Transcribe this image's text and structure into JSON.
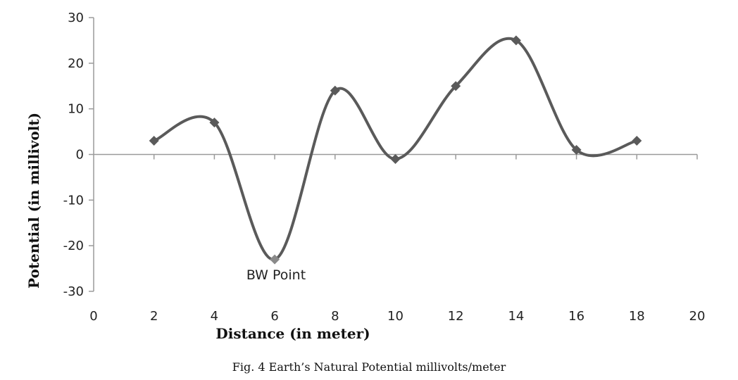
{
  "caption": "Fig. 4 Earth’s Natural Potential millivolts/meter",
  "chart_data": {
    "type": "line",
    "smooth": true,
    "xlabel": "Distance (in meter)",
    "ylabel": "Potential (in millivolt)",
    "xlim": [
      0,
      20
    ],
    "ylim": [
      -30,
      30
    ],
    "x_ticks": [
      0,
      2,
      4,
      6,
      8,
      10,
      12,
      14,
      16,
      18,
      20
    ],
    "y_ticks": [
      -30,
      -20,
      -10,
      0,
      10,
      20,
      30
    ],
    "grid": false,
    "legend": "none",
    "series": [
      {
        "x": [
          2,
          4,
          6,
          8,
          10,
          12,
          14,
          16,
          18
        ],
        "y": [
          3,
          7,
          -23,
          14,
          -1,
          15,
          25,
          1,
          3
        ],
        "line_color": "#5a5a5a",
        "marker": "diamond",
        "marker_color": "#5a5a5a"
      }
    ],
    "annotations": [
      {
        "text": "BW Point",
        "x": 6,
        "y": -23,
        "marker_color": "#8a8a8a"
      }
    ]
  }
}
